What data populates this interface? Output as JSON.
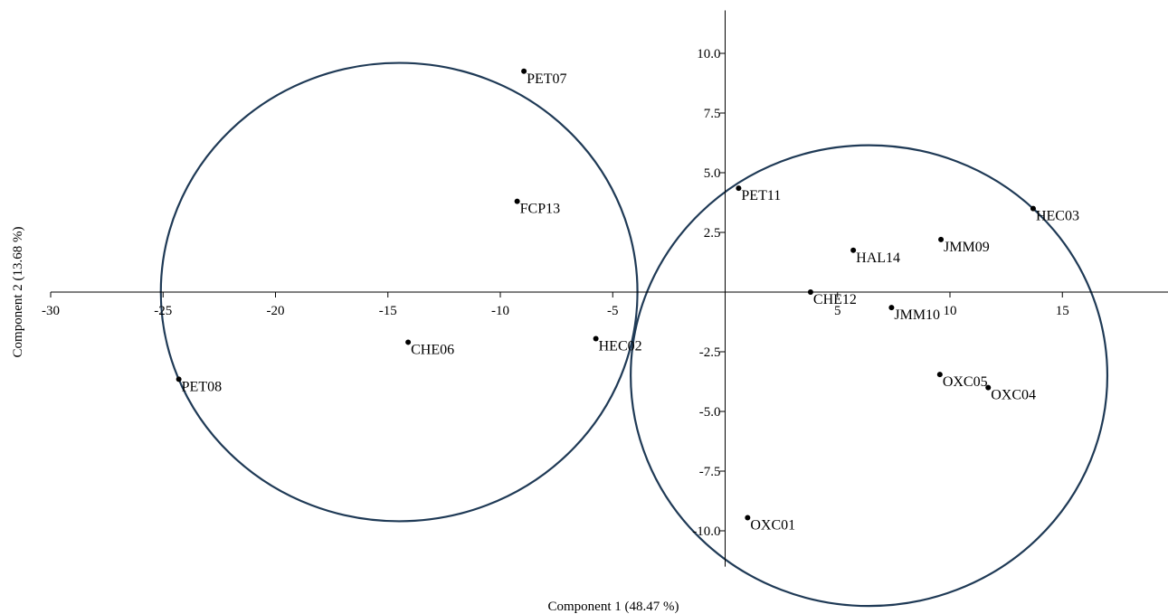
{
  "chart_data": {
    "type": "scatter",
    "title": "",
    "xlabel": "Component 1 (48.47 %)",
    "ylabel": "Component 2 (13.68 %)",
    "xlim": [
      -30,
      20
    ],
    "ylim": [
      -11.5,
      11.8
    ],
    "grid": false,
    "legend": "none",
    "x_ticks": [
      -30,
      -25,
      -20,
      -15,
      -10,
      -5,
      5,
      10,
      15
    ],
    "x_tick_labels": [
      "-30",
      "-25",
      "-20",
      "-15",
      "-10",
      "-5",
      "5",
      "10",
      "15"
    ],
    "y_ticks": [
      10,
      7.5,
      5,
      2.5,
      -2.5,
      -5,
      -7.5,
      -10
    ],
    "y_tick_labels": [
      "10.0",
      "7.5",
      "5.0",
      "2.5",
      "-2.5",
      "-5.0",
      "-7.5",
      "-10.0"
    ],
    "points": [
      {
        "label": "PET07",
        "x": -8.95,
        "y": 9.25
      },
      {
        "label": "FCP13",
        "x": -9.25,
        "y": 3.8
      },
      {
        "label": "PET11",
        "x": 0.6,
        "y": 4.35
      },
      {
        "label": "HEC03",
        "x": 13.7,
        "y": 3.5
      },
      {
        "label": "JMM09",
        "x": 9.6,
        "y": 2.2
      },
      {
        "label": "HAL14",
        "x": 5.7,
        "y": 1.75
      },
      {
        "label": "CHE12",
        "x": 3.8,
        "y": 0.0
      },
      {
        "label": "JMM10",
        "x": 7.4,
        "y": -0.65
      },
      {
        "label": "CHE06",
        "x": -14.1,
        "y": -2.1
      },
      {
        "label": "HEC02",
        "x": -5.75,
        "y": -1.95
      },
      {
        "label": "PET08",
        "x": -24.3,
        "y": -3.65
      },
      {
        "label": "OXC05",
        "x": 9.55,
        "y": -3.45
      },
      {
        "label": "OXC04",
        "x": 11.7,
        "y": -4.0
      },
      {
        "label": "OXC01",
        "x": 1.0,
        "y": -9.45
      }
    ],
    "circles": [
      {
        "cx": -14.5,
        "cy": 0.0,
        "rx": 10.6,
        "ry": 9.6
      },
      {
        "cx": 6.4,
        "cy": -3.5,
        "rx": 10.6,
        "ry": 9.65
      }
    ],
    "colors": {
      "points": "#000000",
      "circles": "#1f3a56",
      "axes": "#000000"
    }
  }
}
